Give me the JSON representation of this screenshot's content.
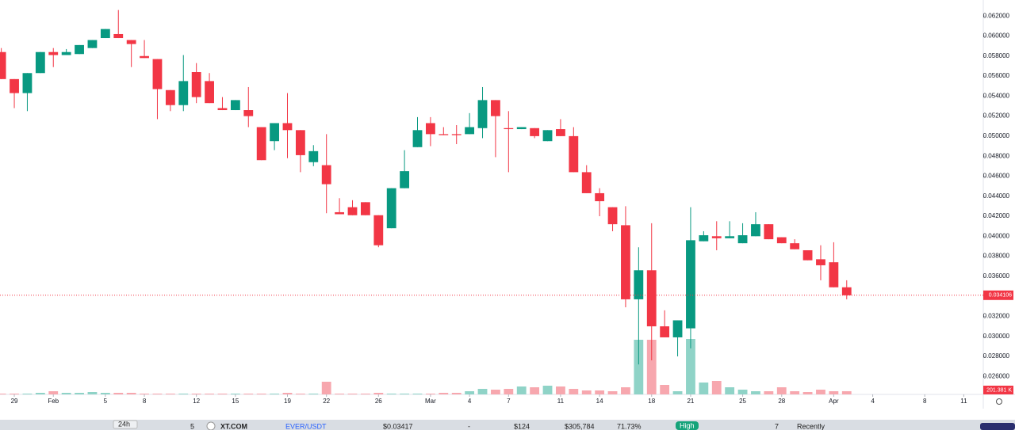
{
  "chart_data": {
    "type": "candlestick",
    "open": [
      0.0584,
      0.0557,
      0.0543,
      0.0563,
      0.0584,
      0.0581,
      0.0582,
      0.0588,
      0.0598,
      0.0602,
      0.0596,
      0.058,
      0.0577,
      0.0546,
      0.0531,
      0.0564,
      0.0555,
      0.0528,
      0.0526,
      0.0526,
      0.0509,
      0.0495,
      0.0513,
      0.0506,
      0.0474,
      0.0471,
      0.0424,
      0.0429,
      0.0434,
      0.0421,
      0.0408,
      0.0448,
      0.0489,
      0.0513,
      0.0502,
      0.0502,
      0.0502,
      0.0508,
      0.0536,
      0.0508,
      0.0507,
      0.0508,
      0.0495,
      0.0507,
      0.05,
      0.0464,
      0.0443,
      0.0429,
      0.0411,
      0.0337,
      0.0366,
      0.031,
      0.0299,
      0.0308,
      0.0395,
      0.04,
      0.0398,
      0.0393,
      0.04,
      0.0412,
      0.0399,
      0.0393,
      0.0386,
      0.0377,
      0.0374,
      0.0349
    ],
    "high": [
      0.0588,
      0.0557,
      0.0563,
      0.0584,
      0.0588,
      0.0587,
      0.0591,
      0.0596,
      0.0607,
      0.0626,
      0.0596,
      0.0596,
      0.0577,
      0.0546,
      0.0581,
      0.0573,
      0.0563,
      0.0539,
      0.0536,
      0.0549,
      0.0509,
      0.0513,
      0.0543,
      0.0506,
      0.0491,
      0.0502,
      0.0438,
      0.0436,
      0.0434,
      0.0421,
      0.0448,
      0.0486,
      0.0519,
      0.0519,
      0.0509,
      0.0511,
      0.0523,
      0.0549,
      0.0536,
      0.0525,
      0.0509,
      0.0508,
      0.0506,
      0.0517,
      0.0509,
      0.0471,
      0.0448,
      0.0429,
      0.043,
      0.0389,
      0.0413,
      0.0326,
      0.0316,
      0.0429,
      0.0405,
      0.0415,
      0.0415,
      0.0413,
      0.0424,
      0.0412,
      0.0399,
      0.0397,
      0.0386,
      0.0391,
      0.0394,
      0.0356
    ],
    "low": [
      0.0557,
      0.0528,
      0.0525,
      0.0563,
      0.0569,
      0.0581,
      0.0582,
      0.0588,
      0.0598,
      0.0598,
      0.0569,
      0.0578,
      0.0517,
      0.0525,
      0.0525,
      0.0533,
      0.0533,
      0.0526,
      0.0526,
      0.0509,
      0.0476,
      0.0486,
      0.0478,
      0.0464,
      0.047,
      0.0423,
      0.0422,
      0.0421,
      0.0421,
      0.0389,
      0.0408,
      0.0448,
      0.0489,
      0.049,
      0.0501,
      0.0492,
      0.0502,
      0.0498,
      0.0479,
      0.0464,
      0.0507,
      0.0498,
      0.0495,
      0.05,
      0.0464,
      0.0443,
      0.042,
      0.0405,
      0.0329,
      0.0272,
      0.0276,
      0.0299,
      0.028,
      0.0288,
      0.0395,
      0.0386,
      0.0398,
      0.0393,
      0.04,
      0.0397,
      0.0393,
      0.0387,
      0.0376,
      0.0356,
      0.0349,
      0.0337
    ],
    "close": [
      0.0557,
      0.0543,
      0.0563,
      0.0584,
      0.0581,
      0.0584,
      0.0591,
      0.0596,
      0.0607,
      0.0598,
      0.0592,
      0.0578,
      0.0547,
      0.0531,
      0.0555,
      0.0539,
      0.0533,
      0.0526,
      0.0536,
      0.052,
      0.0476,
      0.0513,
      0.0506,
      0.0481,
      0.0485,
      0.0452,
      0.0422,
      0.0421,
      0.0421,
      0.0391,
      0.0448,
      0.0465,
      0.0506,
      0.0502,
      0.0501,
      0.0501,
      0.0509,
      0.0536,
      0.052,
      0.0507,
      0.0509,
      0.05,
      0.0506,
      0.05,
      0.0464,
      0.0443,
      0.0435,
      0.0412,
      0.0337,
      0.0366,
      0.031,
      0.0299,
      0.0316,
      0.0396,
      0.0401,
      0.0398,
      0.04,
      0.0401,
      0.0412,
      0.0397,
      0.0393,
      0.0387,
      0.0376,
      0.0371,
      0.0349,
      0.0341
    ],
    "up_color": "#089981",
    "down_color": "#f23645",
    "ylim": [
      0.0242,
      0.0636
    ],
    "yticks": [
      {
        "value": 0.026,
        "label": "0.026000"
      },
      {
        "value": 0.028,
        "label": "0.028000"
      },
      {
        "value": 0.03,
        "label": "0.030000"
      },
      {
        "value": 0.032,
        "label": "0.032000"
      },
      {
        "value": 0.034,
        "label": "0.034000"
      },
      {
        "value": 0.036,
        "label": "0.036000"
      },
      {
        "value": 0.038,
        "label": "0.038000"
      },
      {
        "value": 0.04,
        "label": "0.040000"
      },
      {
        "value": 0.042,
        "label": "0.042000"
      },
      {
        "value": 0.044,
        "label": "0.044000"
      },
      {
        "value": 0.046,
        "label": "0.046000"
      },
      {
        "value": 0.048,
        "label": "0.048000"
      },
      {
        "value": 0.05,
        "label": "0.050000"
      },
      {
        "value": 0.052,
        "label": "0.052000"
      },
      {
        "value": 0.054,
        "label": "0.054000"
      },
      {
        "value": 0.056,
        "label": "0.056000"
      },
      {
        "value": 0.058,
        "label": "0.058000"
      },
      {
        "value": 0.06,
        "label": "0.060000"
      },
      {
        "value": 0.062,
        "label": "0.062000"
      }
    ],
    "xlim": [
      -0.1,
      75.5
    ],
    "xticks": [
      {
        "value": 1,
        "label": "29"
      },
      {
        "value": 4,
        "label": "Feb"
      },
      {
        "value": 8,
        "label": "5"
      },
      {
        "value": 11,
        "label": "8"
      },
      {
        "value": 15,
        "label": "12"
      },
      {
        "value": 18,
        "label": "15"
      },
      {
        "value": 22,
        "label": "19"
      },
      {
        "value": 25,
        "label": "22"
      },
      {
        "value": 29,
        "label": "26"
      },
      {
        "value": 33,
        "label": "Mar"
      },
      {
        "value": 36,
        "label": "4"
      },
      {
        "value": 39,
        "label": "7"
      },
      {
        "value": 43,
        "label": "11"
      },
      {
        "value": 46,
        "label": "14"
      },
      {
        "value": 50,
        "label": "18"
      },
      {
        "value": 53,
        "label": "21"
      },
      {
        "value": 57,
        "label": "25"
      },
      {
        "value": 60,
        "label": "28"
      },
      {
        "value": 64,
        "label": "Apr"
      },
      {
        "value": 67,
        "label": "4"
      },
      {
        "value": 71,
        "label": "8"
      },
      {
        "value": 74,
        "label": "11"
      }
    ],
    "last_price": 0.034106,
    "volume": {
      "values": [
        50,
        50,
        50,
        100,
        200,
        100,
        100,
        150,
        100,
        100,
        100,
        50,
        50,
        50,
        50,
        50,
        50,
        50,
        50,
        50,
        50,
        50,
        100,
        50,
        50,
        800,
        50,
        50,
        50,
        100,
        50,
        50,
        50,
        50,
        100,
        100,
        200,
        350,
        300,
        350,
        500,
        450,
        550,
        500,
        350,
        250,
        250,
        200,
        450,
        3450,
        3450,
        600,
        200,
        3500,
        750,
        850,
        450,
        300,
        200,
        200,
        450,
        200,
        150,
        300,
        200,
        201.381
      ],
      "last_label": "201.381 K",
      "lim": [
        0,
        24900
      ],
      "up_color": "#8fd3c7",
      "down_color": "#f7a7ae"
    }
  },
  "footer": {
    "period": "24h",
    "rank": "5",
    "exchange": "XT.COM",
    "pair": "EVER/USDT",
    "price": "$0.03417",
    "spread": "-",
    "depth": "$124",
    "volume": "$305,784",
    "share": "71.73%",
    "confidence": "High",
    "score": "7",
    "updated": "Recently"
  }
}
